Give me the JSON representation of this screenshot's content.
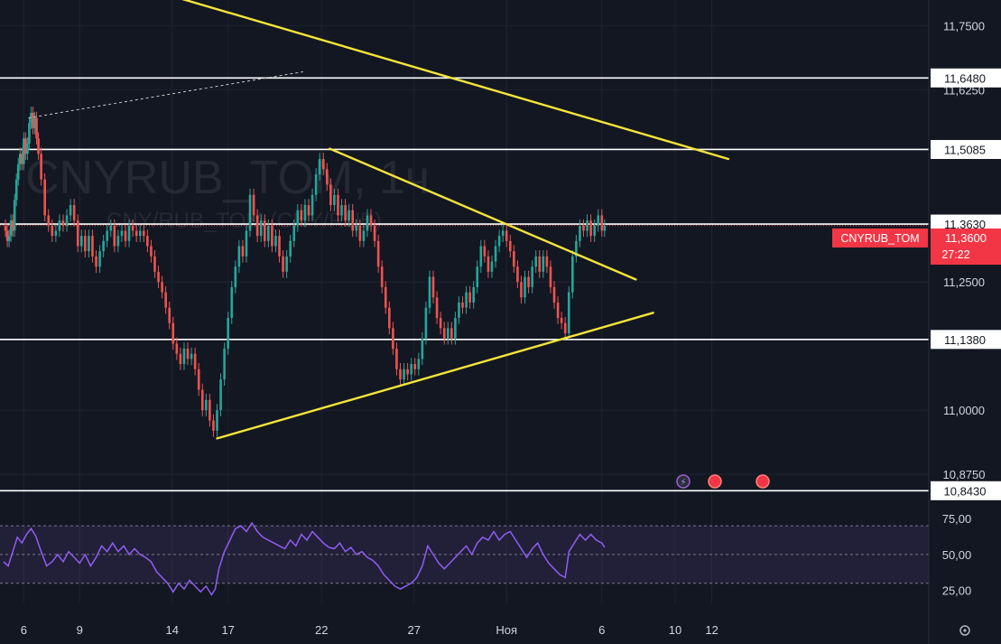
{
  "watermark": {
    "symbol": "CNYRUB_TOM, 1ч",
    "description": "CNY/RUB_TOM (CNY/RUB)"
  },
  "colors": {
    "background": "#131722",
    "up": "#26a69a",
    "down": "#ef5350",
    "trendline": "#f5e43a",
    "level_line": "#ffffff",
    "rsi": "#8e5ef2",
    "price_badge": "#f23645"
  },
  "chart_data": [
    {
      "type": "candlestick",
      "symbol": "CNYRUB_TOM",
      "interval": "1ч",
      "ylim": [
        10.84,
        11.8
      ],
      "y_ticks": [
        "11,7500",
        "11,6250",
        "11,2500",
        "11,0000",
        "10,8750"
      ],
      "x_ticks": [
        {
          "day": 5.45,
          "label": "6"
        },
        {
          "day": 8.5,
          "label": "9"
        },
        {
          "day": 13.55,
          "label": "14"
        },
        {
          "day": 16.6,
          "label": "17"
        },
        {
          "day": 21.7,
          "label": "22"
        },
        {
          "day": 26.75,
          "label": "27"
        },
        {
          "day": 31.8,
          "label": "Ноя"
        },
        {
          "day": 37.0,
          "label": "6"
        },
        {
          "day": 41.0,
          "label": "10"
        },
        {
          "day": 43.0,
          "label": "12"
        }
      ],
      "horizontal_levels": [
        {
          "price": 11.648,
          "label": "11,6480"
        },
        {
          "price": 11.5085,
          "label": "11,5085"
        },
        {
          "price": 11.363,
          "label": "11,3630"
        },
        {
          "price": 11.138,
          "label": "11,1380"
        },
        {
          "price": 10.843,
          "label": "10,8430"
        }
      ],
      "trendlines": [
        {
          "from": [
            9.5,
            11.85
          ],
          "to": [
            43.9,
            11.49
          ]
        },
        {
          "from": [
            22.15,
            11.51
          ],
          "to": [
            38.85,
            11.255
          ]
        },
        {
          "from": [
            16.0,
            10.945
          ],
          "to": [
            39.8,
            11.19
          ]
        }
      ],
      "extension_line": {
        "style": "dashed",
        "from": [
          5.7,
          11.57
        ],
        "to": [
          20.7,
          11.66
        ]
      },
      "current_price": {
        "symbol": "CNYRUB_TOM",
        "price": "11,3600",
        "countdown": "27:22"
      },
      "closes": [
        [
          4.35,
          11.36
        ],
        [
          4.45,
          11.35
        ],
        [
          4.55,
          11.33
        ],
        [
          4.65,
          11.34
        ],
        [
          4.75,
          11.37
        ],
        [
          4.85,
          11.35
        ],
        [
          4.95,
          11.41
        ],
        [
          5.05,
          11.45
        ],
        [
          5.15,
          11.48
        ],
        [
          5.25,
          11.5
        ],
        [
          5.35,
          11.48
        ],
        [
          5.45,
          11.53
        ],
        [
          5.55,
          11.5
        ],
        [
          5.65,
          11.52
        ],
        [
          5.75,
          11.56
        ],
        [
          5.85,
          11.58
        ],
        [
          5.95,
          11.55
        ],
        [
          6.05,
          11.57
        ],
        [
          6.15,
          11.53
        ],
        [
          6.25,
          11.5
        ],
        [
          6.4,
          11.45
        ],
        [
          6.6,
          11.38
        ],
        [
          6.8,
          11.36
        ],
        [
          7.0,
          11.34
        ],
        [
          7.2,
          11.35
        ],
        [
          7.4,
          11.37
        ],
        [
          7.6,
          11.36
        ],
        [
          7.8,
          11.38
        ],
        [
          8.0,
          11.4
        ],
        [
          8.2,
          11.37
        ],
        [
          8.4,
          11.32
        ],
        [
          8.6,
          11.34
        ],
        [
          8.8,
          11.31
        ],
        [
          9.0,
          11.34
        ],
        [
          9.2,
          11.3
        ],
        [
          9.4,
          11.28
        ],
        [
          9.6,
          11.31
        ],
        [
          9.8,
          11.33
        ],
        [
          10.0,
          11.35
        ],
        [
          10.2,
          11.36
        ],
        [
          10.4,
          11.32
        ],
        [
          10.6,
          11.34
        ],
        [
          10.8,
          11.35
        ],
        [
          11.0,
          11.33
        ],
        [
          11.2,
          11.36
        ],
        [
          11.4,
          11.35
        ],
        [
          11.6,
          11.34
        ],
        [
          11.8,
          11.35
        ],
        [
          12.0,
          11.34
        ],
        [
          12.2,
          11.32
        ],
        [
          12.4,
          11.3
        ],
        [
          12.6,
          11.27
        ],
        [
          12.8,
          11.25
        ],
        [
          13.0,
          11.23
        ],
        [
          13.2,
          11.2
        ],
        [
          13.4,
          11.17
        ],
        [
          13.6,
          11.13
        ],
        [
          13.8,
          11.11
        ],
        [
          14.0,
          11.09
        ],
        [
          14.2,
          11.12
        ],
        [
          14.4,
          11.1
        ],
        [
          14.6,
          11.11
        ],
        [
          14.8,
          11.08
        ],
        [
          15.0,
          11.04
        ],
        [
          15.2,
          11.0
        ],
        [
          15.4,
          11.02
        ],
        [
          15.6,
          10.98
        ],
        [
          15.8,
          10.96
        ],
        [
          16.0,
          11.0
        ],
        [
          16.2,
          11.06
        ],
        [
          16.4,
          11.12
        ],
        [
          16.6,
          11.18
        ],
        [
          16.8,
          11.24
        ],
        [
          17.0,
          11.28
        ],
        [
          17.2,
          11.32
        ],
        [
          17.4,
          11.3
        ],
        [
          17.6,
          11.35
        ],
        [
          17.8,
          11.42
        ],
        [
          18.0,
          11.38
        ],
        [
          18.2,
          11.34
        ],
        [
          18.4,
          11.37
        ],
        [
          18.6,
          11.33
        ],
        [
          18.8,
          11.36
        ],
        [
          19.0,
          11.32
        ],
        [
          19.2,
          11.34
        ],
        [
          19.4,
          11.3
        ],
        [
          19.6,
          11.27
        ],
        [
          19.8,
          11.3
        ],
        [
          20.0,
          11.33
        ],
        [
          20.2,
          11.36
        ],
        [
          20.4,
          11.39
        ],
        [
          20.6,
          11.37
        ],
        [
          20.8,
          11.4
        ],
        [
          21.0,
          11.38
        ],
        [
          21.2,
          11.42
        ],
        [
          21.4,
          11.46
        ],
        [
          21.6,
          11.49
        ],
        [
          21.8,
          11.47
        ],
        [
          22.0,
          11.44
        ],
        [
          22.2,
          11.4
        ],
        [
          22.4,
          11.42
        ],
        [
          22.6,
          11.38
        ],
        [
          22.8,
          11.4
        ],
        [
          23.0,
          11.37
        ],
        [
          23.2,
          11.39
        ],
        [
          23.4,
          11.35
        ],
        [
          23.6,
          11.36
        ],
        [
          23.8,
          11.33
        ],
        [
          24.0,
          11.35
        ],
        [
          24.2,
          11.38
        ],
        [
          24.4,
          11.36
        ],
        [
          24.6,
          11.33
        ],
        [
          24.8,
          11.28
        ],
        [
          25.0,
          11.24
        ],
        [
          25.2,
          11.2
        ],
        [
          25.4,
          11.16
        ],
        [
          25.6,
          11.12
        ],
        [
          25.8,
          11.08
        ],
        [
          26.0,
          11.06
        ],
        [
          26.2,
          11.08
        ],
        [
          26.4,
          11.07
        ],
        [
          26.6,
          11.09
        ],
        [
          26.8,
          11.08
        ],
        [
          27.0,
          11.1
        ],
        [
          27.2,
          11.14
        ],
        [
          27.4,
          11.2
        ],
        [
          27.6,
          11.26
        ],
        [
          27.8,
          11.22
        ],
        [
          28.0,
          11.18
        ],
        [
          28.2,
          11.16
        ],
        [
          28.4,
          11.14
        ],
        [
          28.6,
          11.16
        ],
        [
          28.8,
          11.14
        ],
        [
          29.0,
          11.18
        ],
        [
          29.2,
          11.21
        ],
        [
          29.4,
          11.2
        ],
        [
          29.6,
          11.23
        ],
        [
          29.8,
          11.21
        ],
        [
          30.0,
          11.24
        ],
        [
          30.2,
          11.28
        ],
        [
          30.4,
          11.32
        ],
        [
          30.6,
          11.3
        ],
        [
          30.8,
          11.27
        ],
        [
          31.0,
          11.29
        ],
        [
          31.2,
          11.32
        ],
        [
          31.4,
          11.34
        ],
        [
          31.6,
          11.35
        ],
        [
          31.8,
          11.33
        ],
        [
          32.0,
          11.31
        ],
        [
          32.2,
          11.28
        ],
        [
          32.4,
          11.25
        ],
        [
          32.6,
          11.22
        ],
        [
          32.8,
          11.26
        ],
        [
          33.0,
          11.24
        ],
        [
          33.2,
          11.28
        ],
        [
          33.4,
          11.3
        ],
        [
          33.6,
          11.27
        ],
        [
          33.8,
          11.3
        ],
        [
          34.0,
          11.28
        ],
        [
          34.2,
          11.24
        ],
        [
          34.4,
          11.21
        ],
        [
          34.6,
          11.18
        ],
        [
          34.8,
          11.17
        ],
        [
          35.0,
          11.15
        ],
        [
          35.2,
          11.23
        ],
        [
          35.4,
          11.3
        ],
        [
          35.6,
          11.33
        ],
        [
          35.8,
          11.36
        ],
        [
          36.0,
          11.35
        ],
        [
          36.2,
          11.37
        ],
        [
          36.4,
          11.34
        ],
        [
          36.6,
          11.36
        ],
        [
          36.8,
          11.38
        ],
        [
          37.0,
          11.35
        ],
        [
          37.15,
          11.36
        ]
      ]
    },
    {
      "type": "line",
      "indicator": "RSI",
      "ylim": [
        16,
        82
      ],
      "y_ticks": [
        "75,00",
        "50,00",
        "25,00"
      ],
      "band": [
        30,
        70
      ],
      "points": [
        [
          4.35,
          45
        ],
        [
          4.6,
          42
        ],
        [
          4.85,
          52
        ],
        [
          5.1,
          62
        ],
        [
          5.35,
          58
        ],
        [
          5.6,
          64
        ],
        [
          5.85,
          68
        ],
        [
          6.1,
          63
        ],
        [
          6.4,
          52
        ],
        [
          6.7,
          42
        ],
        [
          7.0,
          45
        ],
        [
          7.3,
          50
        ],
        [
          7.6,
          45
        ],
        [
          7.9,
          52
        ],
        [
          8.2,
          48
        ],
        [
          8.5,
          44
        ],
        [
          8.8,
          50
        ],
        [
          9.1,
          42
        ],
        [
          9.4,
          48
        ],
        [
          9.7,
          56
        ],
        [
          10.0,
          52
        ],
        [
          10.3,
          58
        ],
        [
          10.6,
          52
        ],
        [
          10.9,
          56
        ],
        [
          11.2,
          50
        ],
        [
          11.5,
          54
        ],
        [
          11.8,
          50
        ],
        [
          12.1,
          48
        ],
        [
          12.4,
          45
        ],
        [
          12.7,
          38
        ],
        [
          13.0,
          34
        ],
        [
          13.3,
          30
        ],
        [
          13.6,
          24
        ],
        [
          13.9,
          30
        ],
        [
          14.2,
          26
        ],
        [
          14.5,
          32
        ],
        [
          14.8,
          28
        ],
        [
          15.1,
          24
        ],
        [
          15.4,
          28
        ],
        [
          15.7,
          22
        ],
        [
          15.9,
          26
        ],
        [
          16.1,
          40
        ],
        [
          16.4,
          52
        ],
        [
          16.7,
          60
        ],
        [
          17.0,
          68
        ],
        [
          17.3,
          70
        ],
        [
          17.6,
          66
        ],
        [
          17.9,
          72
        ],
        [
          18.2,
          66
        ],
        [
          18.5,
          62
        ],
        [
          18.8,
          60
        ],
        [
          19.1,
          58
        ],
        [
          19.4,
          56
        ],
        [
          19.7,
          54
        ],
        [
          20.0,
          60
        ],
        [
          20.3,
          56
        ],
        [
          20.6,
          64
        ],
        [
          20.9,
          60
        ],
        [
          21.2,
          66
        ],
        [
          21.5,
          62
        ],
        [
          21.8,
          58
        ],
        [
          22.1,
          55
        ],
        [
          22.4,
          54
        ],
        [
          22.7,
          58
        ],
        [
          23.0,
          52
        ],
        [
          23.3,
          55
        ],
        [
          23.6,
          50
        ],
        [
          23.9,
          52
        ],
        [
          24.2,
          48
        ],
        [
          24.5,
          46
        ],
        [
          24.8,
          42
        ],
        [
          25.1,
          36
        ],
        [
          25.4,
          32
        ],
        [
          25.7,
          28
        ],
        [
          26.0,
          26
        ],
        [
          26.3,
          28
        ],
        [
          26.6,
          30
        ],
        [
          26.9,
          34
        ],
        [
          27.2,
          42
        ],
        [
          27.5,
          56
        ],
        [
          27.8,
          50
        ],
        [
          28.1,
          44
        ],
        [
          28.4,
          40
        ],
        [
          28.7,
          44
        ],
        [
          29.0,
          48
        ],
        [
          29.3,
          52
        ],
        [
          29.6,
          56
        ],
        [
          29.9,
          50
        ],
        [
          30.2,
          58
        ],
        [
          30.5,
          62
        ],
        [
          30.8,
          60
        ],
        [
          31.1,
          66
        ],
        [
          31.4,
          60
        ],
        [
          31.7,
          64
        ],
        [
          32.0,
          66
        ],
        [
          32.3,
          60
        ],
        [
          32.6,
          54
        ],
        [
          32.9,
          48
        ],
        [
          33.2,
          54
        ],
        [
          33.5,
          58
        ],
        [
          33.8,
          50
        ],
        [
          34.1,
          44
        ],
        [
          34.4,
          40
        ],
        [
          34.7,
          36
        ],
        [
          35.0,
          34
        ],
        [
          35.2,
          52
        ],
        [
          35.5,
          58
        ],
        [
          35.8,
          64
        ],
        [
          36.1,
          60
        ],
        [
          36.4,
          64
        ],
        [
          36.7,
          60
        ],
        [
          37.0,
          58
        ],
        [
          37.15,
          55
        ]
      ]
    }
  ]
}
